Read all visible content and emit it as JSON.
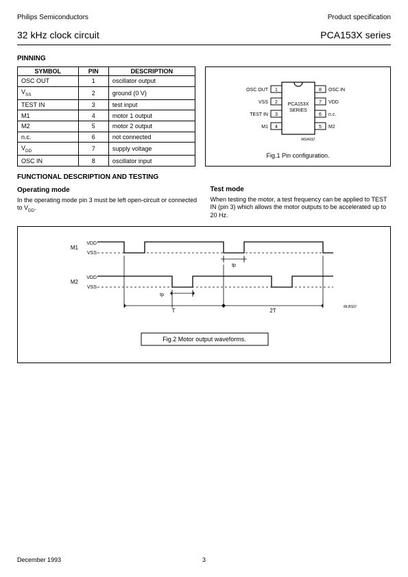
{
  "header": {
    "left": "Philips Semiconductors",
    "right": "Product specification"
  },
  "title": {
    "left": "32 kHz clock circuit",
    "right": "PCA153X series"
  },
  "pinning": {
    "heading": "PINNING",
    "columns": [
      "SYMBOL",
      "PIN",
      "DESCRIPTION"
    ],
    "rows": [
      [
        "OSC OUT",
        "1",
        "oscillator output"
      ],
      [
        "V_SS",
        "2",
        "ground (0 V)"
      ],
      [
        "TEST IN",
        "3",
        "test input"
      ],
      [
        "M1",
        "4",
        "motor 1 output"
      ],
      [
        "M2",
        "5",
        "motor 2 output"
      ],
      [
        "n.c.",
        "6",
        "not connected"
      ],
      [
        "V_DD",
        "7",
        "supply voltage"
      ],
      [
        "OSC IN",
        "8",
        "oscillator input"
      ]
    ]
  },
  "fig1": {
    "caption": "Fig.1  Pin configuration.",
    "chip_label1": "PCA153X",
    "chip_label2": "SERIES",
    "ref": "MGA932",
    "left_pins": [
      {
        "num": "1",
        "label": "OSC OUT"
      },
      {
        "num": "2",
        "label": "V_SS"
      },
      {
        "num": "3",
        "label": "TEST IN"
      },
      {
        "num": "4",
        "label": "M1"
      }
    ],
    "right_pins": [
      {
        "num": "8",
        "label": "OSC IN"
      },
      {
        "num": "7",
        "label": "V_DD"
      },
      {
        "num": "6",
        "label": "n.c."
      },
      {
        "num": "5",
        "label": "M2"
      }
    ]
  },
  "functional": {
    "heading": "FUNCTIONAL DESCRIPTION AND TESTING",
    "op_mode_title": "Operating mode",
    "op_mode_text": "In the operating mode pin 3 must be left open-circuit or connected to V_DD.",
    "test_mode_title": "Test mode",
    "test_mode_text": "When testing the motor, a test frequency can be applied to TEST IN (pin 3) which allows the motor outputs to be accelerated up to 20 Hz."
  },
  "fig2": {
    "caption": "Fig.2  Motor output waveforms.",
    "m1": "M1",
    "m2": "M2",
    "vdd": "V_DD",
    "vss": "V_SS",
    "tp": "t_p",
    "T": "T",
    "T2": "2T",
    "ref": "MLB322"
  },
  "footer": {
    "date": "December 1993",
    "page": "3"
  },
  "colors": {
    "line": "#000000",
    "bg": "#ffffff"
  }
}
